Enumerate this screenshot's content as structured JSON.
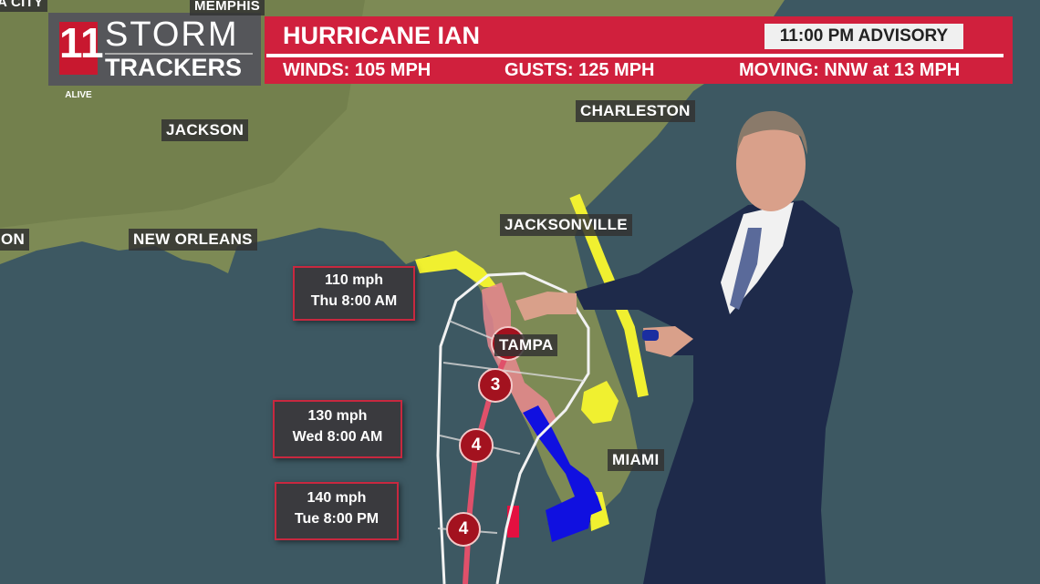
{
  "logo": {
    "number": "11",
    "sub": "ALIVE",
    "line1": "STORM",
    "line2": "TRACKERS"
  },
  "banner": {
    "title": "HURRICANE IAN",
    "advisory": "11:00 PM  ADVISORY",
    "winds": "WINDS: 105 MPH",
    "gusts": "GUSTS:  125 MPH",
    "moving": "MOVING: NNW at 13 MPH"
  },
  "cities": {
    "top_left": "A CITY",
    "memphis": "MEMPHIS",
    "jackson": "JACKSON",
    "charleston": "CHARLESTON",
    "houston_partial": "ON",
    "new_orleans": "NEW ORLEANS",
    "jacksonville": "JACKSONVILLE",
    "tampa": "TAMPA",
    "miami": "MIAMI"
  },
  "forecast_points": [
    {
      "speed": "110 mph",
      "time": "Thu 8:00 AM"
    },
    {
      "speed": "130 mph",
      "time": "Wed 8:00 AM"
    },
    {
      "speed": "140 mph",
      "time": "Tue 8:00 PM"
    }
  ],
  "markers": [
    {
      "category": "3"
    },
    {
      "category": "4"
    },
    {
      "category": "4"
    }
  ],
  "colors": {
    "banner": "#d0203d",
    "hurricane_warning": "#e8878f",
    "storm_surge_warning": "#1010e0",
    "tropical_storm_watch": "#f0f030",
    "track": "#e0506a",
    "marker": "#a3121f"
  }
}
